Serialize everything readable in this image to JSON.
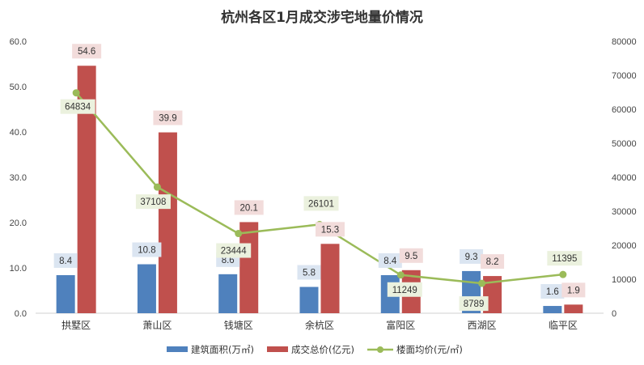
{
  "chart_data": {
    "type": "bar",
    "title": "杭州各区1月成交涉宅地量价情况",
    "categories": [
      "拱墅区",
      "萧山区",
      "钱塘区",
      "余杭区",
      "富阳区",
      "西湖区",
      "临平区"
    ],
    "left_axis": {
      "ylim": [
        0,
        60
      ],
      "ticks": [
        "0.0",
        "10.0",
        "20.0",
        "30.0",
        "40.0",
        "50.0",
        "60.0"
      ]
    },
    "right_axis": {
      "ylim": [
        0,
        80000
      ],
      "ticks": [
        "0",
        "10000",
        "20000",
        "30000",
        "40000",
        "50000",
        "60000",
        "70000",
        "80000"
      ]
    },
    "series": [
      {
        "name": "建筑面积(万㎡)",
        "type": "bar",
        "axis": "left",
        "color": "#4f81bd",
        "label_bg": "#dbe5f1",
        "values": [
          8.4,
          10.8,
          8.6,
          5.8,
          8.4,
          9.3,
          1.6
        ],
        "labels": [
          "8.4",
          "10.8",
          "8.6",
          "5.8",
          "8.4",
          "9.3",
          "1.6"
        ]
      },
      {
        "name": "成交总价(亿元)",
        "type": "bar",
        "axis": "left",
        "color": "#c0504d",
        "label_bg": "#f2dcdb",
        "values": [
          54.6,
          39.9,
          20.1,
          15.3,
          9.5,
          8.2,
          1.9
        ],
        "labels": [
          "54.6",
          "39.9",
          "20.1",
          "15.3",
          "9.5",
          "8.2",
          "1.9"
        ]
      },
      {
        "name": "楼面均价(元/㎡)",
        "type": "line",
        "axis": "right",
        "color": "#9bbb59",
        "label_bg": "#ebf1de",
        "values": [
          64834,
          37108,
          23444,
          26101,
          11249,
          8789,
          11395
        ],
        "labels": [
          "64834",
          "37108",
          "23444",
          "26101",
          "11249",
          "8789",
          "11395"
        ]
      }
    ],
    "grid": false,
    "legend": "bottom"
  }
}
